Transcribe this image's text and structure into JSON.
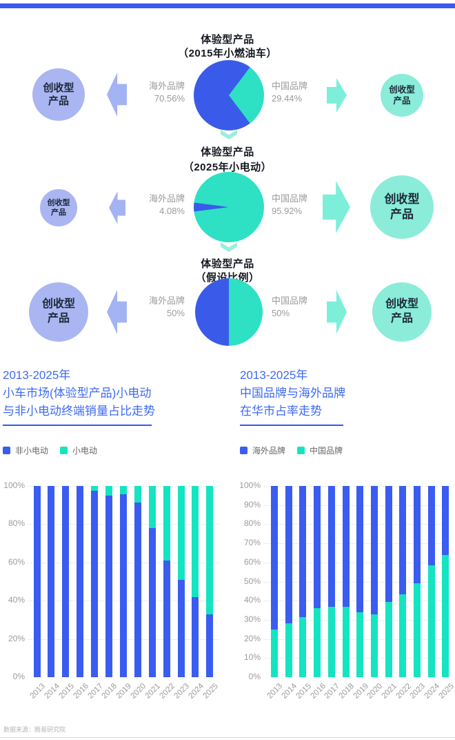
{
  "colors": {
    "top_bar": "#3b57f2",
    "blue": "#3a5be9",
    "teal_pie": "#2ee0c4",
    "bar_blue": "#3a5cf0",
    "bar_teal": "#14e4c2",
    "light_blue": "#a9b6f2",
    "light_blue_arrow": "#a3b3f3",
    "light_teal": "#8aecd9",
    "light_teal_arrow": "#7defd9",
    "chevron": "#9ceede",
    "title_blue": "#3e6af2"
  },
  "flow_sections": [
    {
      "title": "体验型产品",
      "subtitle": "（2015年小燃油车）",
      "left_label": "海外品牌",
      "left_value": "70.56%",
      "right_label": "中国品牌",
      "right_value": "29.44%",
      "overseas_pct": 70.56,
      "china_pct": 29.44,
      "left_circle_line1": "创收型",
      "left_circle_line2": "产品",
      "right_circle_line1": "创收型",
      "right_circle_line2": "产品"
    },
    {
      "title": "体验型产品",
      "subtitle": "（2025年小电动）",
      "left_label": "海外品牌",
      "left_value": "4.08%",
      "right_label": "中国品牌",
      "right_value": "95.92%",
      "overseas_pct": 4.08,
      "china_pct": 95.92,
      "left_circle_line1": "创收型",
      "left_circle_line2": "产品",
      "right_circle_line1": "创收型",
      "right_circle_line2": "产品"
    },
    {
      "title": "体验型产品",
      "subtitle": "（假设比例）",
      "left_label": "海外品牌",
      "left_value": "50%",
      "right_label": "中国品牌",
      "right_value": "50%",
      "overseas_pct": 50,
      "china_pct": 50,
      "left_circle_line1": "创收型",
      "left_circle_line2": "产品",
      "right_circle_line1": "创收型",
      "right_circle_line2": "产品"
    }
  ],
  "chart_data": [
    {
      "type": "bar",
      "stacked": true,
      "title_lines": [
        "2013-2025年",
        "小车市场(体验型产品)小电动",
        "与非小电动终端销量占比走势"
      ],
      "categories": [
        "2013",
        "2014",
        "2015",
        "2016",
        "2017",
        "2018",
        "2019",
        "2020",
        "2021",
        "2022",
        "2023",
        "2024",
        "2025"
      ],
      "legend": [
        {
          "label": "非小电动",
          "color": "#3a5cf0"
        },
        {
          "label": "小电动",
          "color": "#14e4c2"
        }
      ],
      "series": [
        {
          "name": "非小电动",
          "color": "#3a5cf0",
          "values": [
            100,
            100,
            100,
            100,
            97.5,
            95,
            95.5,
            91.5,
            78,
            61,
            51,
            42,
            33
          ]
        },
        {
          "name": "小电动",
          "color": "#14e4c2",
          "values": [
            0,
            0,
            0,
            0,
            2.5,
            5,
            4.5,
            8.5,
            22,
            39,
            49,
            58,
            67
          ]
        }
      ],
      "ylim": [
        0,
        100
      ],
      "ytick_step": 20,
      "yunit": "%",
      "grid": true,
      "legend_position": "top-left"
    },
    {
      "type": "bar",
      "stacked": true,
      "title_lines": [
        "2013-2025年",
        "中国品牌与海外品牌",
        "在华市占率走势"
      ],
      "categories": [
        "2013",
        "2014",
        "2015",
        "2016",
        "2017",
        "2018",
        "2019",
        "2020",
        "2021",
        "2022",
        "2023",
        "2024",
        "2025"
      ],
      "legend": [
        {
          "label": "海外品牌",
          "color": "#3a5cf0"
        },
        {
          "label": "中国品牌",
          "color": "#14e4c2"
        }
      ],
      "series": [
        {
          "name": "中国品牌",
          "color": "#14e4c2",
          "values": [
            25,
            28,
            31.5,
            36,
            37,
            37,
            34,
            33,
            39.5,
            43.5,
            49,
            58.5,
            64
          ]
        },
        {
          "name": "海外品牌",
          "color": "#3a5cf0",
          "values": [
            75,
            72,
            68.5,
            64,
            63,
            63,
            66,
            67,
            60.5,
            56.5,
            51,
            41.5,
            36
          ]
        }
      ],
      "ylim": [
        0,
        100
      ],
      "ytick_step": 10,
      "yunit": "%",
      "grid": true,
      "legend_position": "top-left"
    }
  ],
  "source": "数据来源：腾易研究院"
}
